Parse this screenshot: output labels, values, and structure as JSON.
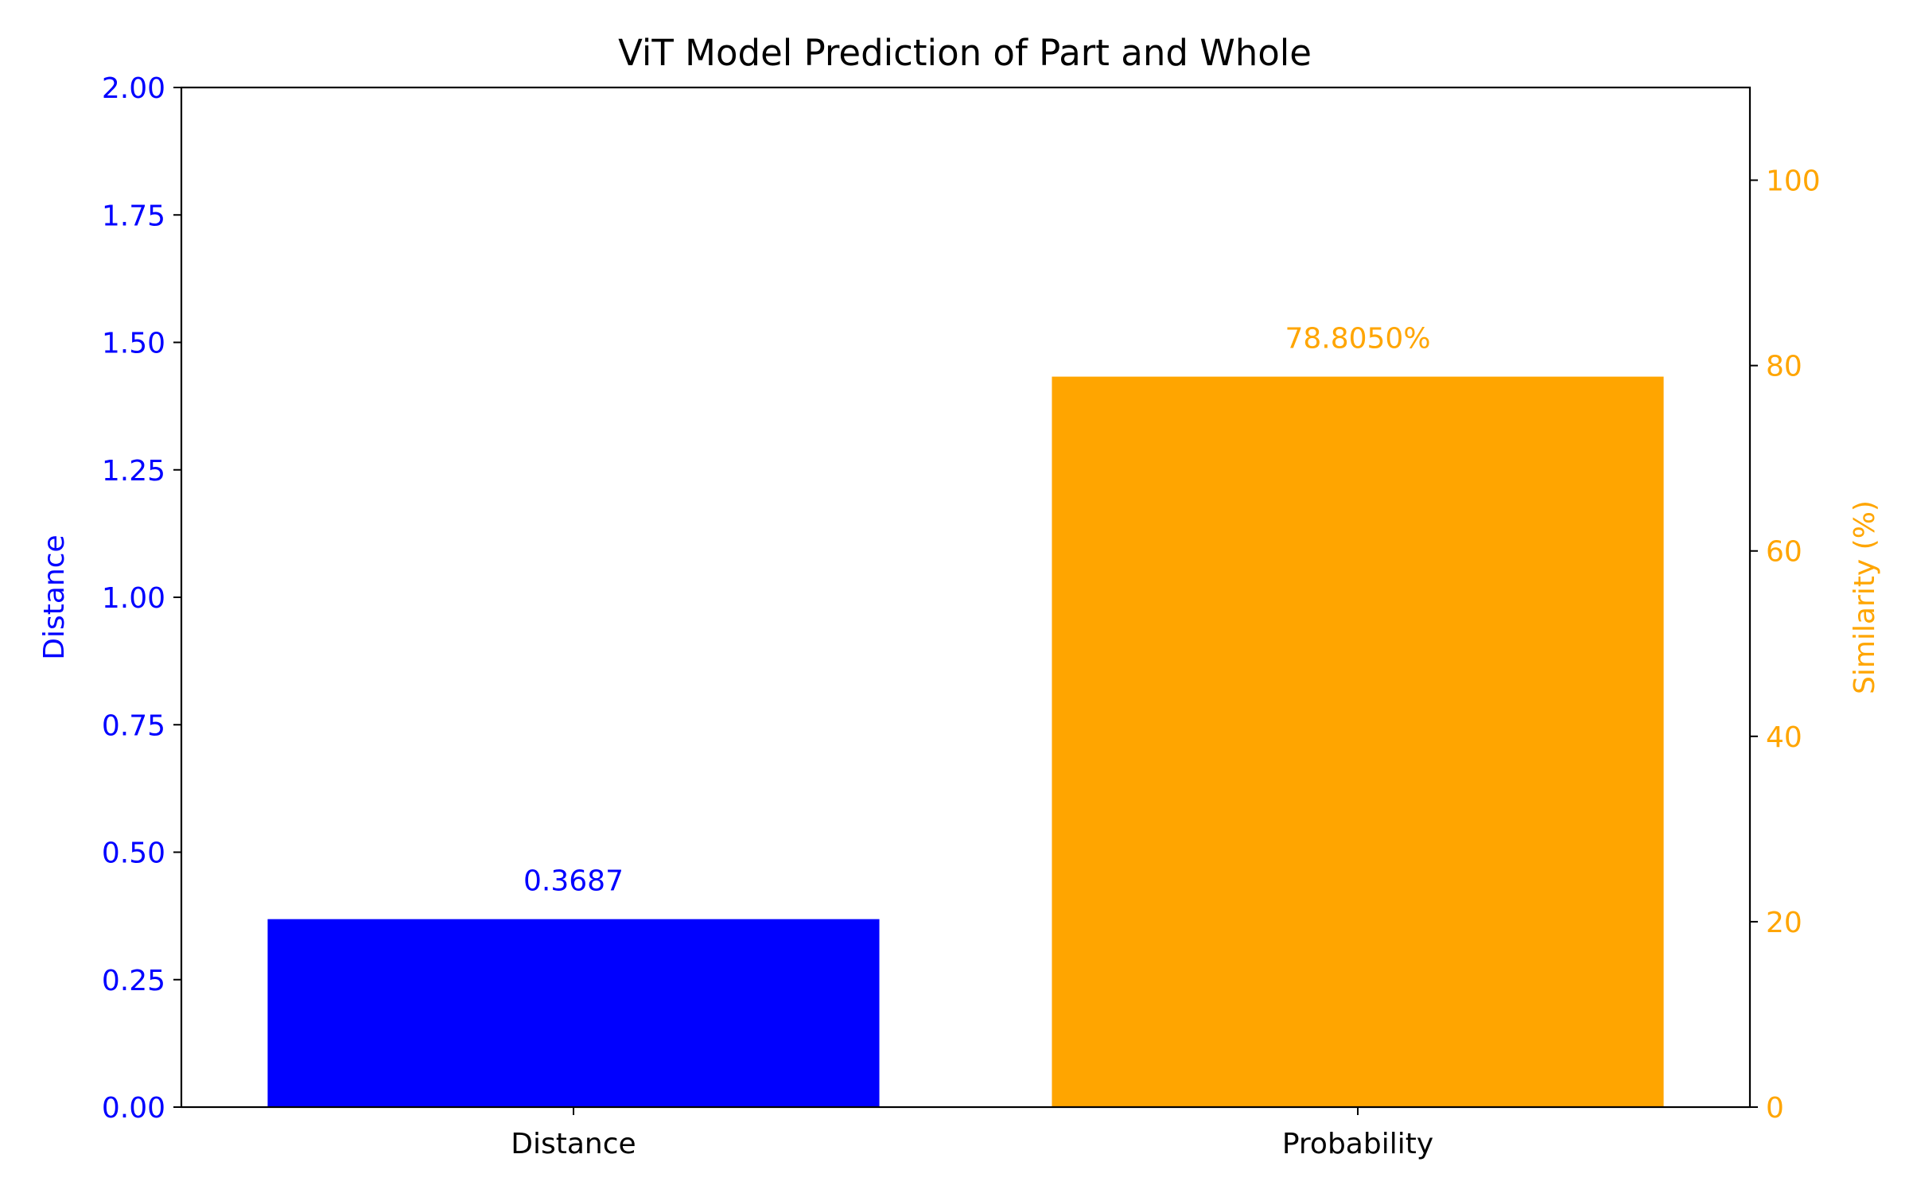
{
  "chart_data": {
    "type": "bar",
    "title": "ViT Model Prediction of Part and Whole",
    "categories": [
      "Distance",
      "Probability"
    ],
    "series": [
      {
        "name": "Distance",
        "axis": "left",
        "category": "Distance",
        "value": 0.3687,
        "label": "0.3687",
        "color": "#0000ff"
      },
      {
        "name": "Similarity (%)",
        "axis": "right",
        "category": "Probability",
        "value": 78.805,
        "label": "78.8050%",
        "color": "#ffa500"
      }
    ],
    "left_axis": {
      "label": "Distance",
      "color": "#0000ff",
      "ylim": [
        0,
        2.0
      ],
      "ticks": [
        "0.00",
        "0.25",
        "0.50",
        "0.75",
        "1.00",
        "1.25",
        "1.50",
        "1.75",
        "2.00"
      ]
    },
    "right_axis": {
      "label": "Similarity (%)",
      "color": "#ffa500",
      "ylim": [
        0,
        110
      ],
      "ticks": [
        "0",
        "20",
        "40",
        "60",
        "80",
        "100"
      ]
    },
    "xlabel": "",
    "grid": false,
    "legend": "none"
  }
}
